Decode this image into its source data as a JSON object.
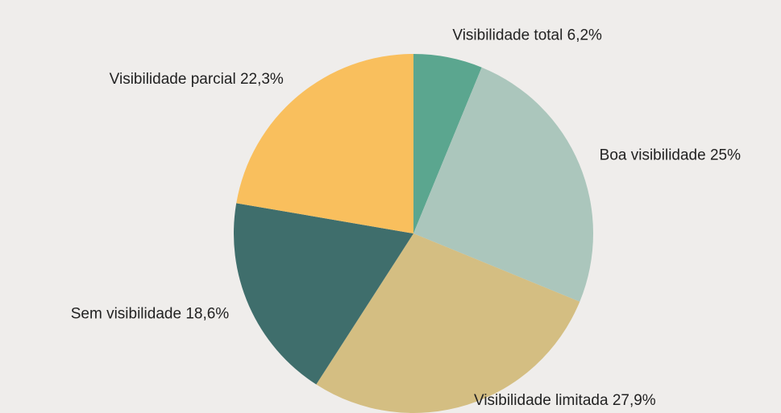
{
  "chart_data": {
    "type": "pie",
    "categories": [
      "Visibilidade total",
      "Boa visibilidade",
      "Visibilidade limitada",
      "Sem visibilidade",
      "Visibilidade parcial"
    ],
    "values": [
      6.2,
      25,
      27.9,
      18.6,
      22.3
    ],
    "value_labels": [
      "6,2%",
      "25%",
      "27,9%",
      "18,6%",
      "22,3%"
    ],
    "colors": [
      "#5ba68f",
      "#abc6bc",
      "#d4be82",
      "#3f6e6c",
      "#f9bf5d"
    ]
  }
}
